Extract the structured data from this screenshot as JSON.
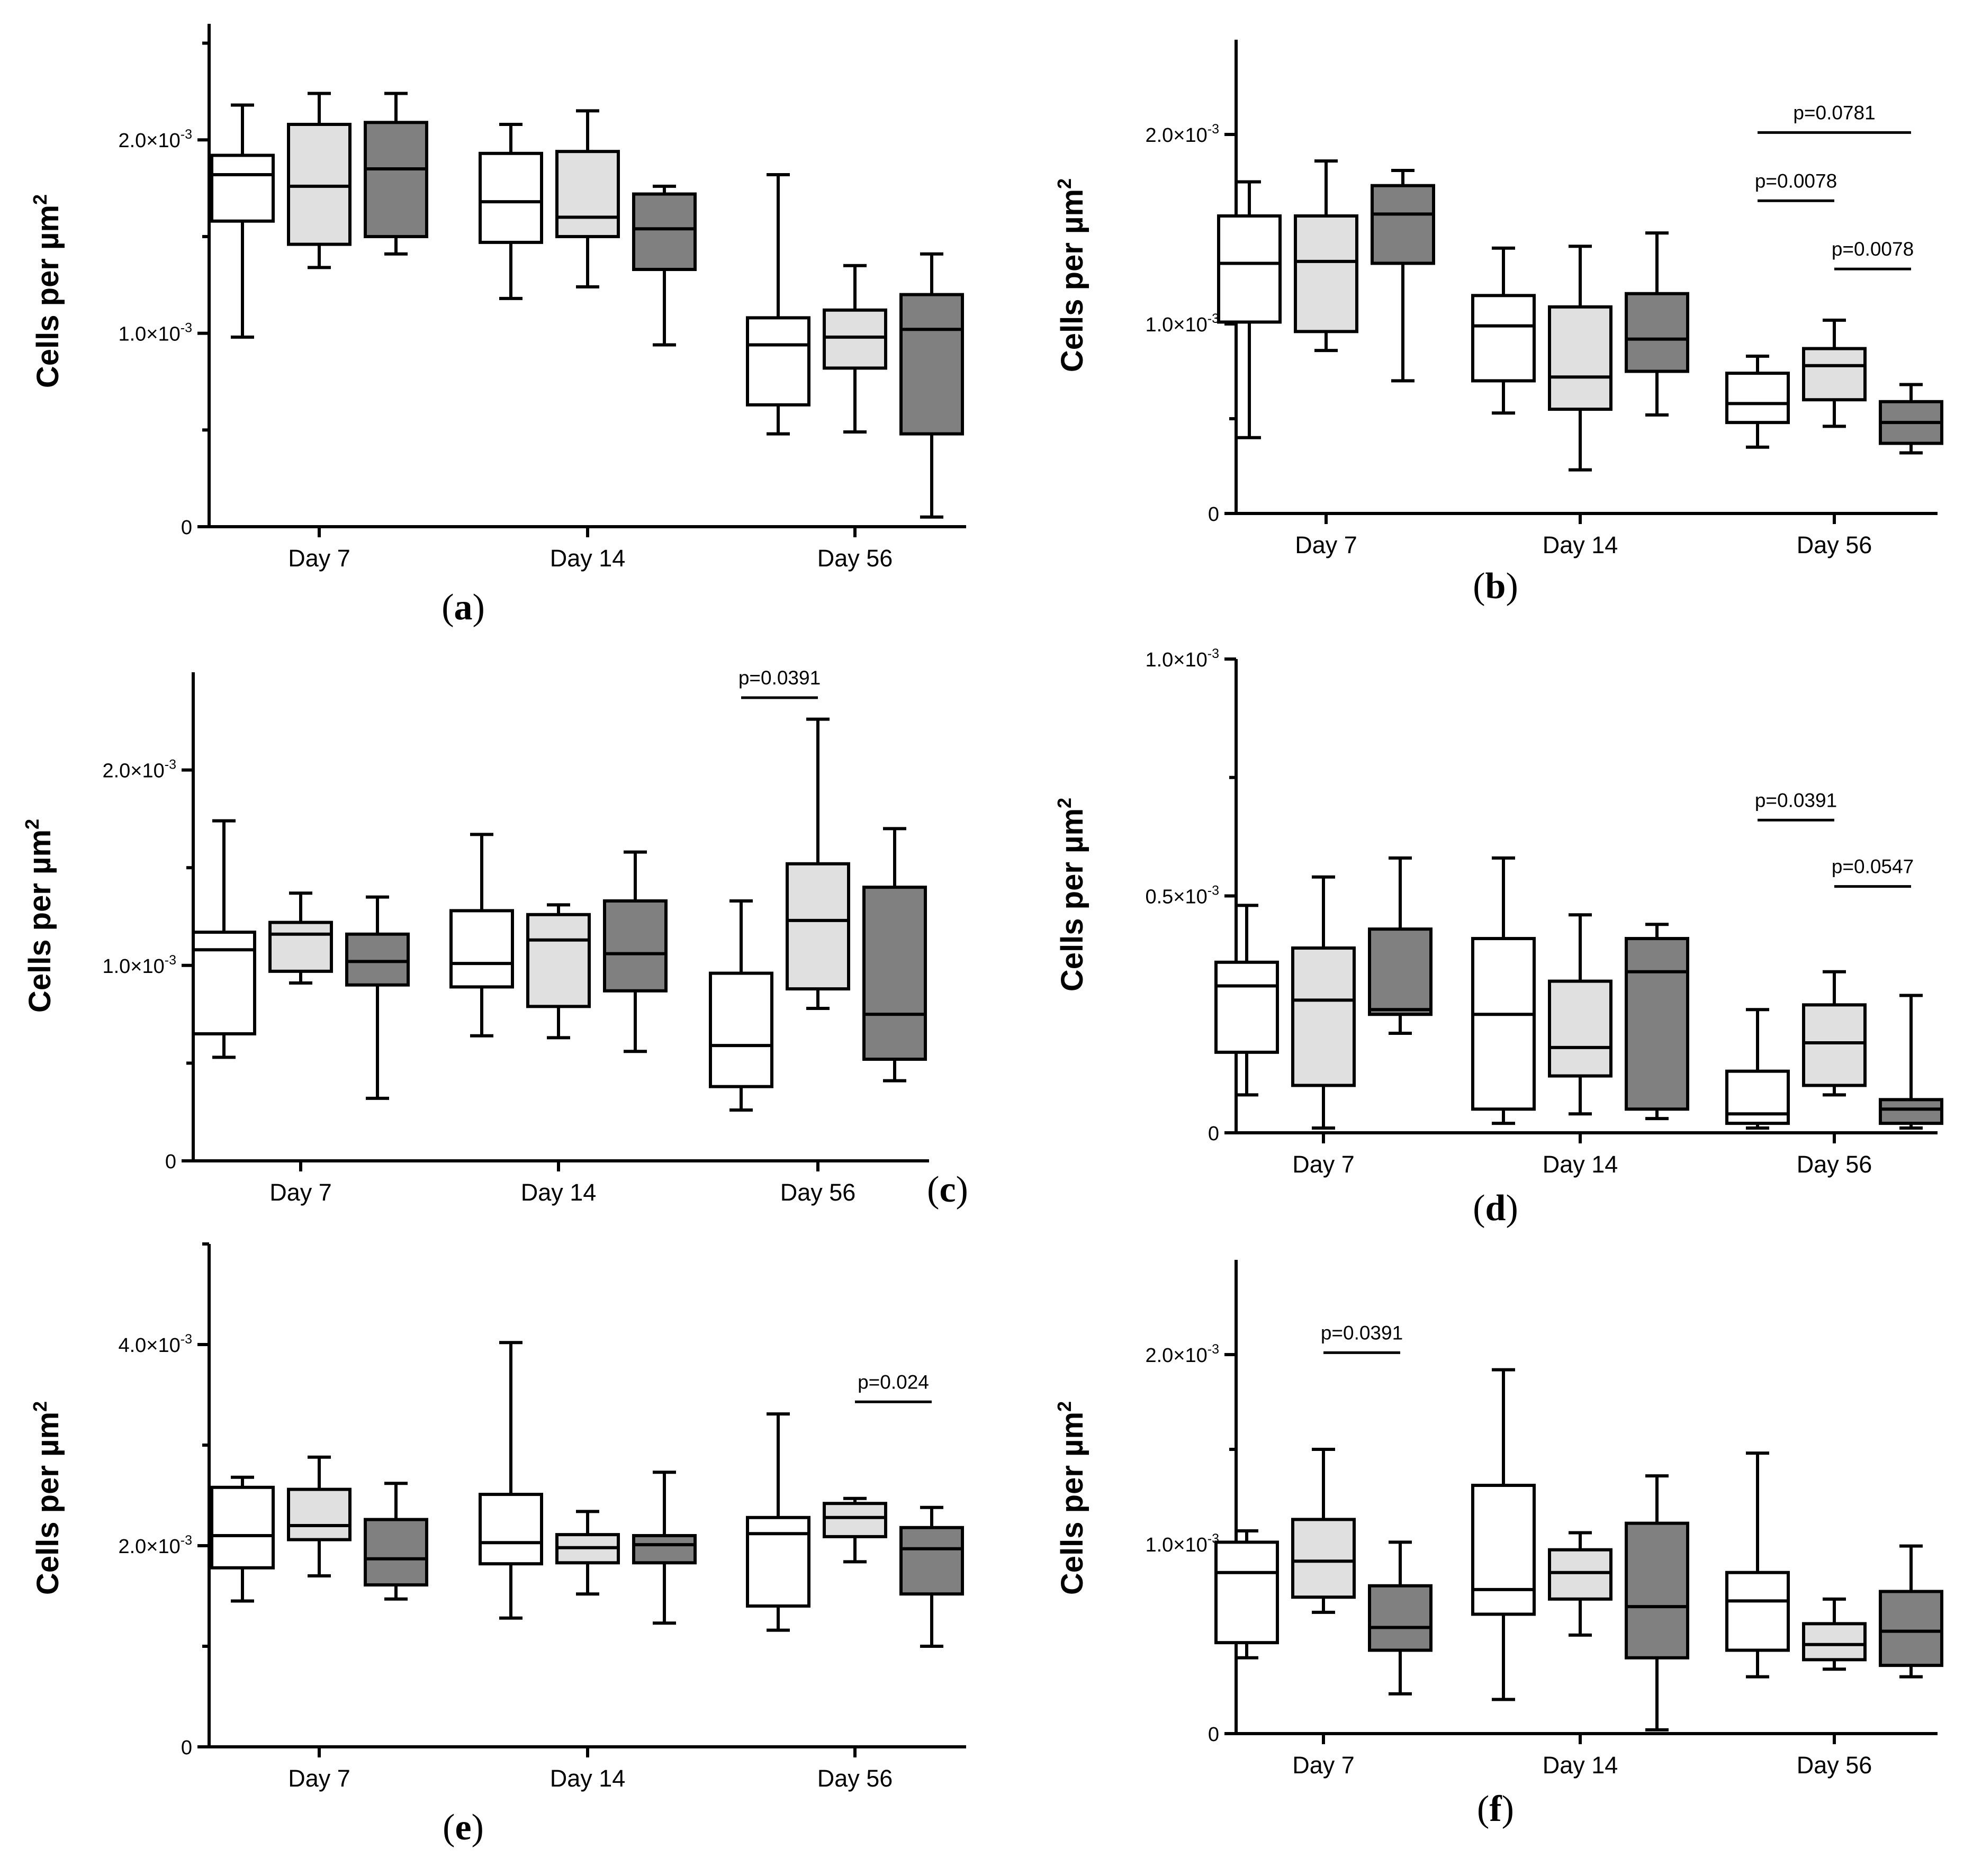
{
  "colors": {
    "g1": "#ffffff",
    "g2": "#e0e0e0",
    "g3": "#808080",
    "stroke": "#000000"
  },
  "chart_data": [
    {
      "type": "box",
      "panel": "a",
      "ylabel": "Cells per µm",
      "ylabel_sup": "2",
      "categories": [
        "Day 7",
        "Day 14",
        "Day 56"
      ],
      "ylim": [
        0,
        0.0026
      ],
      "yticks": [
        {
          "v": 0,
          "m": "0",
          "e": ""
        },
        {
          "v": 0.001,
          "m": "1.0×10",
          "e": "-3"
        },
        {
          "v": 0.002,
          "m": "2.0×10",
          "e": "-3"
        }
      ],
      "minor_ticks": [
        0.0005,
        0.0015,
        0.0025
      ],
      "boxes": [
        {
          "cat": 0,
          "g": 0,
          "min": 0.00098,
          "q1": 0.00158,
          "med": 0.00182,
          "q3": 0.00192,
          "max": 0.00218
        },
        {
          "cat": 0,
          "g": 1,
          "min": 0.00134,
          "q1": 0.00146,
          "med": 0.00176,
          "q3": 0.00208,
          "max": 0.00224
        },
        {
          "cat": 0,
          "g": 2,
          "min": 0.00141,
          "q1": 0.0015,
          "med": 0.00185,
          "q3": 0.00209,
          "max": 0.00224
        },
        {
          "cat": 1,
          "g": 0,
          "min": 0.00118,
          "q1": 0.00147,
          "med": 0.00168,
          "q3": 0.00193,
          "max": 0.00208
        },
        {
          "cat": 1,
          "g": 1,
          "min": 0.00124,
          "q1": 0.0015,
          "med": 0.0016,
          "q3": 0.00194,
          "max": 0.00215
        },
        {
          "cat": 1,
          "g": 2,
          "min": 0.00094,
          "q1": 0.00133,
          "med": 0.00154,
          "q3": 0.00172,
          "max": 0.00176
        },
        {
          "cat": 2,
          "g": 0,
          "min": 0.00048,
          "q1": 0.00063,
          "med": 0.00094,
          "q3": 0.00108,
          "max": 0.00182
        },
        {
          "cat": 2,
          "g": 1,
          "min": 0.00049,
          "q1": 0.00082,
          "med": 0.00098,
          "q3": 0.00112,
          "max": 0.00135
        },
        {
          "cat": 2,
          "g": 2,
          "min": 5e-05,
          "q1": 0.00048,
          "med": 0.00102,
          "q3": 0.0012,
          "max": 0.00141
        }
      ],
      "annotations": []
    },
    {
      "type": "box",
      "panel": "b",
      "ylabel": "Cells per µm",
      "ylabel_sup": "2",
      "categories": [
        "Day 7",
        "Day 14",
        "Day 56"
      ],
      "ylim": [
        0,
        0.0025
      ],
      "yticks": [
        {
          "v": 0,
          "m": "0",
          "e": ""
        },
        {
          "v": 0.001,
          "m": "1.0×10",
          "e": "-3"
        },
        {
          "v": 0.002,
          "m": "2.0×10",
          "e": "-3"
        }
      ],
      "minor_ticks": [
        0.0005,
        0.0015
      ],
      "boxes": [
        {
          "cat": 0,
          "g": 0,
          "min": 0.0004,
          "q1": 0.00101,
          "med": 0.00132,
          "q3": 0.00157,
          "max": 0.00175
        },
        {
          "cat": 0,
          "g": 1,
          "min": 0.00086,
          "q1": 0.00096,
          "med": 0.00133,
          "q3": 0.00157,
          "max": 0.00186
        },
        {
          "cat": 0,
          "g": 2,
          "min": 0.0007,
          "q1": 0.00132,
          "med": 0.00158,
          "q3": 0.00173,
          "max": 0.00181
        },
        {
          "cat": 1,
          "g": 0,
          "min": 0.00053,
          "q1": 0.0007,
          "med": 0.00099,
          "q3": 0.00115,
          "max": 0.0014
        },
        {
          "cat": 1,
          "g": 1,
          "min": 0.00023,
          "q1": 0.00055,
          "med": 0.00072,
          "q3": 0.00109,
          "max": 0.00141
        },
        {
          "cat": 1,
          "g": 2,
          "min": 0.00052,
          "q1": 0.00075,
          "med": 0.00092,
          "q3": 0.00116,
          "max": 0.00148
        },
        {
          "cat": 2,
          "g": 0,
          "min": 0.00035,
          "q1": 0.00048,
          "med": 0.00058,
          "q3": 0.00074,
          "max": 0.00083
        },
        {
          "cat": 2,
          "g": 1,
          "min": 0.00046,
          "q1": 0.0006,
          "med": 0.00078,
          "q3": 0.00087,
          "max": 0.00102
        },
        {
          "cat": 2,
          "g": 2,
          "min": 0.00032,
          "q1": 0.00037,
          "med": 0.00048,
          "q3": 0.00059,
          "max": 0.00068
        }
      ],
      "annotations": [
        {
          "cat": 2,
          "from": 0,
          "to": 2,
          "y": 0.00201,
          "label": "p=0.0781"
        },
        {
          "cat": 2,
          "from": 0,
          "to": 1,
          "y": 0.00165,
          "label": "p=0.0078"
        },
        {
          "cat": 2,
          "from": 1,
          "to": 2,
          "y": 0.00129,
          "label": "p=0.0078"
        }
      ]
    },
    {
      "type": "box",
      "panel": "c",
      "ylabel": "Cells per µm",
      "ylabel_sup": "2",
      "categories": [
        "Day 7",
        "Day 14",
        "Day 56"
      ],
      "ylim": [
        0,
        0.0025
      ],
      "yticks": [
        {
          "v": 0,
          "m": "0",
          "e": ""
        },
        {
          "v": 0.001,
          "m": "1.0×10",
          "e": "-3"
        },
        {
          "v": 0.002,
          "m": "2.0×10",
          "e": "-3"
        }
      ],
      "minor_ticks": [
        0.0005,
        0.0015
      ],
      "boxes": [
        {
          "cat": 0,
          "g": 0,
          "min": 0.00053,
          "q1": 0.00065,
          "med": 0.00108,
          "q3": 0.00117,
          "max": 0.00174
        },
        {
          "cat": 0,
          "g": 1,
          "min": 0.00091,
          "q1": 0.00097,
          "med": 0.00116,
          "q3": 0.00122,
          "max": 0.00137
        },
        {
          "cat": 0,
          "g": 2,
          "min": 0.00032,
          "q1": 0.0009,
          "med": 0.00102,
          "q3": 0.00116,
          "max": 0.00135
        },
        {
          "cat": 1,
          "g": 0,
          "min": 0.00064,
          "q1": 0.00089,
          "med": 0.00101,
          "q3": 0.00128,
          "max": 0.00167
        },
        {
          "cat": 1,
          "g": 1,
          "min": 0.00063,
          "q1": 0.00079,
          "med": 0.00113,
          "q3": 0.00126,
          "max": 0.00131
        },
        {
          "cat": 1,
          "g": 2,
          "min": 0.00056,
          "q1": 0.00087,
          "med": 0.00106,
          "q3": 0.00133,
          "max": 0.00158
        },
        {
          "cat": 2,
          "g": 0,
          "min": 0.00026,
          "q1": 0.00038,
          "med": 0.00059,
          "q3": 0.00096,
          "max": 0.00133
        },
        {
          "cat": 2,
          "g": 1,
          "min": 0.00078,
          "q1": 0.00088,
          "med": 0.00123,
          "q3": 0.00152,
          "max": 0.00226
        },
        {
          "cat": 2,
          "g": 2,
          "min": 0.00041,
          "q1": 0.00052,
          "med": 0.00075,
          "q3": 0.0014,
          "max": 0.0017
        }
      ],
      "annotations": [
        {
          "cat": 2,
          "from": 0,
          "to": 1,
          "y": 0.00237,
          "label": "p=0.0391"
        }
      ]
    },
    {
      "type": "box",
      "panel": "d",
      "ylabel": "Cells per µm",
      "ylabel_sup": "2",
      "categories": [
        "Day 7",
        "Day 14",
        "Day 56"
      ],
      "ylim": [
        0,
        0.001
      ],
      "yticks": [
        {
          "v": 0,
          "m": "0",
          "e": ""
        },
        {
          "v": 0.0005,
          "m": "0.5×10",
          "e": "-3"
        },
        {
          "v": 0.001,
          "m": "1.0×10",
          "e": "-3"
        }
      ],
      "minor_ticks": [
        0.00025,
        0.00075
      ],
      "boxes": [
        {
          "cat": 0,
          "g": 0,
          "min": 8e-05,
          "q1": 0.00017,
          "med": 0.00031,
          "q3": 0.00036,
          "max": 0.00048
        },
        {
          "cat": 0,
          "g": 1,
          "min": 1e-05,
          "q1": 0.0001,
          "med": 0.00028,
          "q3": 0.00039,
          "max": 0.00054
        },
        {
          "cat": 0,
          "g": 2,
          "min": 0.00021,
          "q1": 0.00025,
          "med": 0.00026,
          "q3": 0.00043,
          "max": 0.00058
        },
        {
          "cat": 1,
          "g": 0,
          "min": 2e-05,
          "q1": 5e-05,
          "med": 0.00025,
          "q3": 0.00041,
          "max": 0.00058
        },
        {
          "cat": 1,
          "g": 1,
          "min": 4e-05,
          "q1": 0.00012,
          "med": 0.00018,
          "q3": 0.00032,
          "max": 0.00046
        },
        {
          "cat": 1,
          "g": 2,
          "min": 3e-05,
          "q1": 5e-05,
          "med": 0.00034,
          "q3": 0.00041,
          "max": 0.00044
        },
        {
          "cat": 2,
          "g": 0,
          "min": 1e-05,
          "q1": 2e-05,
          "med": 4e-05,
          "q3": 0.00013,
          "max": 0.00026
        },
        {
          "cat": 2,
          "g": 1,
          "min": 8e-05,
          "q1": 0.0001,
          "med": 0.00019,
          "q3": 0.00027,
          "max": 0.00034
        },
        {
          "cat": 2,
          "g": 2,
          "min": 1e-05,
          "q1": 2e-05,
          "med": 5e-05,
          "q3": 7e-05,
          "max": 0.00029
        }
      ],
      "annotations": [
        {
          "cat": 2,
          "from": 0,
          "to": 1,
          "y": 0.00066,
          "label": "p=0.0391"
        },
        {
          "cat": 2,
          "from": 1,
          "to": 2,
          "y": 0.00052,
          "label": "p=0.0547"
        }
      ]
    },
    {
      "type": "box",
      "panel": "e",
      "ylabel": "Cells per µm",
      "ylabel_sup": "2",
      "categories": [
        "Day 7",
        "Day 14",
        "Day 56"
      ],
      "ylim": [
        0,
        0.005
      ],
      "yticks": [
        {
          "v": 0,
          "m": "0",
          "e": ""
        },
        {
          "v": 0.002,
          "m": "2.0×10",
          "e": "-3"
        },
        {
          "v": 0.004,
          "m": "4.0×10",
          "e": "-3"
        }
      ],
      "minor_ticks": [
        0.001,
        0.003,
        0.005
      ],
      "boxes": [
        {
          "cat": 0,
          "g": 0,
          "min": 0.00145,
          "q1": 0.00178,
          "med": 0.0021,
          "q3": 0.00258,
          "max": 0.00268
        },
        {
          "cat": 0,
          "g": 1,
          "min": 0.0017,
          "q1": 0.00206,
          "med": 0.0022,
          "q3": 0.00256,
          "max": 0.00288
        },
        {
          "cat": 0,
          "g": 2,
          "min": 0.00147,
          "q1": 0.00161,
          "med": 0.00187,
          "q3": 0.00226,
          "max": 0.00262
        },
        {
          "cat": 1,
          "g": 0,
          "min": 0.00128,
          "q1": 0.00182,
          "med": 0.00203,
          "q3": 0.00251,
          "max": 0.00402
        },
        {
          "cat": 1,
          "g": 1,
          "min": 0.00152,
          "q1": 0.00183,
          "med": 0.00198,
          "q3": 0.00211,
          "max": 0.00234
        },
        {
          "cat": 1,
          "g": 2,
          "min": 0.00123,
          "q1": 0.00183,
          "med": 0.00201,
          "q3": 0.0021,
          "max": 0.00273
        },
        {
          "cat": 2,
          "g": 0,
          "min": 0.00116,
          "q1": 0.0014,
          "med": 0.00212,
          "q3": 0.00228,
          "max": 0.00331
        },
        {
          "cat": 2,
          "g": 1,
          "min": 0.00184,
          "q1": 0.00209,
          "med": 0.00228,
          "q3": 0.00242,
          "max": 0.00247
        },
        {
          "cat": 2,
          "g": 2,
          "min": 0.001,
          "q1": 0.00152,
          "med": 0.00197,
          "q3": 0.00218,
          "max": 0.00238
        }
      ],
      "annotations": [
        {
          "cat": 2,
          "from": 1,
          "to": 2,
          "y": 0.00343,
          "label": "p=0.024"
        }
      ]
    },
    {
      "type": "box",
      "panel": "f",
      "ylabel": "Cells per µm",
      "ylabel_sup": "2",
      "categories": [
        "Day 7",
        "Day 14",
        "Day 56"
      ],
      "ylim": [
        0,
        0.0025
      ],
      "yticks": [
        {
          "v": 0,
          "m": "0",
          "e": ""
        },
        {
          "v": 0.001,
          "m": "1.0×10",
          "e": "-3"
        },
        {
          "v": 0.002,
          "m": "2.0×10",
          "e": "-3"
        }
      ],
      "minor_ticks": [
        0.0005,
        0.0015
      ],
      "boxes": [
        {
          "cat": 0,
          "g": 0,
          "min": 0.0004,
          "q1": 0.00048,
          "med": 0.00085,
          "q3": 0.00101,
          "max": 0.00107
        },
        {
          "cat": 0,
          "g": 1,
          "min": 0.00064,
          "q1": 0.00072,
          "med": 0.00091,
          "q3": 0.00113,
          "max": 0.0015
        },
        {
          "cat": 0,
          "g": 2,
          "min": 0.00021,
          "q1": 0.00044,
          "med": 0.00056,
          "q3": 0.00078,
          "max": 0.00101
        },
        {
          "cat": 1,
          "g": 0,
          "min": 0.00018,
          "q1": 0.00063,
          "med": 0.00076,
          "q3": 0.00131,
          "max": 0.00192
        },
        {
          "cat": 1,
          "g": 1,
          "min": 0.00052,
          "q1": 0.00071,
          "med": 0.00085,
          "q3": 0.00097,
          "max": 0.00106
        },
        {
          "cat": 1,
          "g": 2,
          "min": 2e-05,
          "q1": 0.0004,
          "med": 0.00067,
          "q3": 0.00111,
          "max": 0.00136
        },
        {
          "cat": 2,
          "g": 0,
          "min": 0.0003,
          "q1": 0.00044,
          "med": 0.0007,
          "q3": 0.00085,
          "max": 0.00148
        },
        {
          "cat": 2,
          "g": 1,
          "min": 0.00034,
          "q1": 0.00039,
          "med": 0.00047,
          "q3": 0.00058,
          "max": 0.00071
        },
        {
          "cat": 2,
          "g": 2,
          "min": 0.0003,
          "q1": 0.00036,
          "med": 0.00054,
          "q3": 0.00075,
          "max": 0.00099
        }
      ],
      "annotations": [
        {
          "cat": 0,
          "from": 1,
          "to": 2,
          "y": 0.00201,
          "label": "p=0.0391"
        }
      ]
    }
  ],
  "panel_labels": [
    {
      "open": "(",
      "letter": "a",
      "close": ")"
    },
    {
      "open": "(",
      "letter": "b",
      "close": ")"
    },
    {
      "open": "(",
      "letter": "c",
      "close": ")"
    },
    {
      "open": "(",
      "letter": "d",
      "close": ")"
    },
    {
      "open": "(",
      "letter": "e",
      "close": ")"
    },
    {
      "open": "(",
      "letter": "f",
      "close": ")"
    }
  ]
}
